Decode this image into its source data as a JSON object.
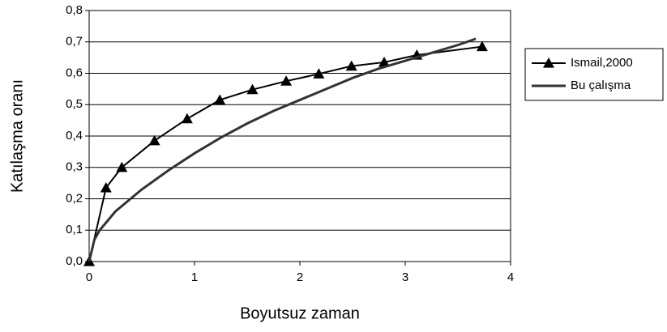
{
  "chart_data": {
    "type": "line",
    "xlabel": "Boyutsuz zaman",
    "ylabel": "Katılaşma oranı",
    "xlim": [
      0,
      4
    ],
    "xticks": [
      0,
      1,
      2,
      3,
      4
    ],
    "ylim": [
      0,
      0.8
    ],
    "yticks": [
      {
        "value": 0,
        "label": "0,0"
      },
      {
        "value": 0.1,
        "label": "0,1"
      },
      {
        "value": 0.2,
        "label": "0,2"
      },
      {
        "value": 0.3,
        "label": "0,3"
      },
      {
        "value": 0.4,
        "label": "0,4"
      },
      {
        "value": 0.5,
        "label": "0,5"
      },
      {
        "value": 0.6,
        "label": "0,6"
      },
      {
        "value": 0.7,
        "label": "0,7"
      },
      {
        "value": 0.8,
        "label": "0,8"
      }
    ],
    "grid": true,
    "legend": "right",
    "series": [
      {
        "name": "Ismail,2000",
        "color": "#000000",
        "marker": "triangle",
        "x": [
          0,
          0.16,
          0.31,
          0.62,
          0.93,
          1.24,
          1.55,
          1.87,
          2.18,
          2.49,
          2.8,
          3.11,
          3.73
        ],
        "values": [
          0,
          0.235,
          0.3,
          0.385,
          0.455,
          0.515,
          0.548,
          0.575,
          0.598,
          0.623,
          0.635,
          0.658,
          0.685
        ]
      },
      {
        "name": "Bu çalışma",
        "color": "#333333",
        "x": [
          0,
          0.05,
          0.1,
          0.25,
          0.5,
          0.75,
          1,
          1.25,
          1.5,
          1.75,
          2,
          2.25,
          2.5,
          2.75,
          3,
          3.25,
          3.5,
          3.67
        ],
        "values": [
          0,
          0.07,
          0.1,
          0.16,
          0.23,
          0.29,
          0.345,
          0.395,
          0.44,
          0.48,
          0.515,
          0.55,
          0.585,
          0.615,
          0.64,
          0.665,
          0.69,
          0.71
        ]
      }
    ]
  }
}
